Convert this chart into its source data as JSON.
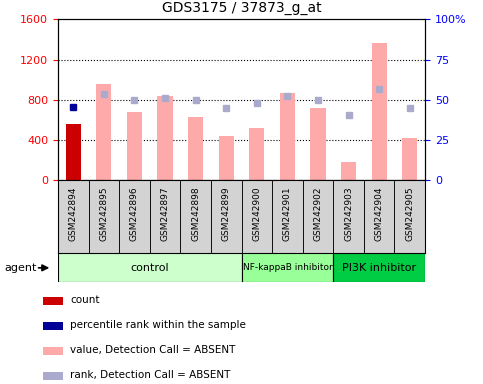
{
  "title": "GDS3175 / 37873_g_at",
  "samples": [
    "GSM242894",
    "GSM242895",
    "GSM242896",
    "GSM242897",
    "GSM242898",
    "GSM242899",
    "GSM242900",
    "GSM242901",
    "GSM242902",
    "GSM242903",
    "GSM242904",
    "GSM242905"
  ],
  "count": [
    560,
    0,
    0,
    0,
    0,
    0,
    0,
    0,
    0,
    0,
    0,
    0
  ],
  "percentile_rank_left": [
    730,
    0,
    0,
    0,
    0,
    0,
    0,
    0,
    0,
    0,
    0,
    0
  ],
  "value_absent": [
    0,
    960,
    680,
    840,
    630,
    440,
    520,
    870,
    720,
    180,
    1360,
    420
  ],
  "rank_absent_left": [
    0,
    860,
    800,
    820,
    800,
    720,
    770,
    840,
    800,
    650,
    910,
    720
  ],
  "groups": [
    {
      "label": "control",
      "start": 0,
      "end": 6,
      "color": "#ccffcc"
    },
    {
      "label": "NF-kappaB inhibitor",
      "start": 6,
      "end": 9,
      "color": "#99ff99"
    },
    {
      "label": "PI3K inhibitor",
      "start": 9,
      "end": 12,
      "color": "#00cc44"
    }
  ],
  "ylim_left": [
    0,
    1600
  ],
  "ylim_right": [
    0,
    100
  ],
  "yticks_left": [
    0,
    400,
    800,
    1200,
    1600
  ],
  "yticks_right": [
    0,
    25,
    50,
    75,
    100
  ],
  "ytick_labels_right": [
    "0",
    "25",
    "50",
    "75",
    "100%"
  ],
  "count_color": "#cc0000",
  "rank_color": "#000099",
  "value_absent_color": "#ffaaaa",
  "rank_absent_color": "#aaaacc",
  "agent_label": "agent",
  "legend_items": [
    {
      "label": "count",
      "color": "#cc0000"
    },
    {
      "label": "percentile rank within the sample",
      "color": "#000099"
    },
    {
      "label": "value, Detection Call = ABSENT",
      "color": "#ffaaaa"
    },
    {
      "label": "rank, Detection Call = ABSENT",
      "color": "#aaaacc"
    }
  ]
}
